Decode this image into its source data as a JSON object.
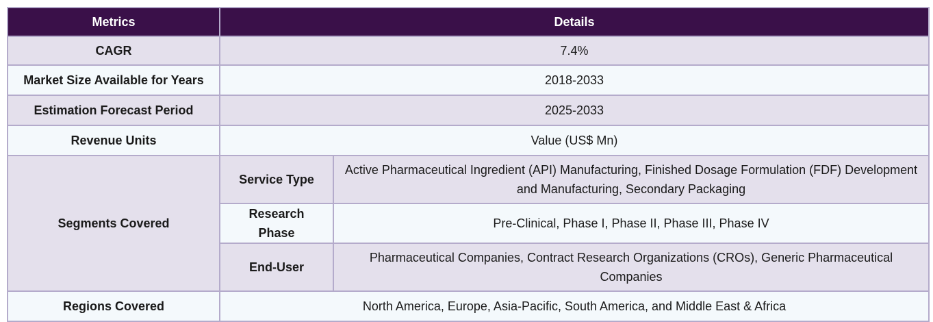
{
  "header": {
    "col1": "Metrics",
    "col2": "Details"
  },
  "rows": {
    "cagr": {
      "label": "CAGR",
      "value": "7.4%"
    },
    "market_size": {
      "label": "Market Size Available for Years",
      "value": "2018-2033"
    },
    "forecast": {
      "label": "Estimation Forecast Period",
      "value": "2025-2033"
    },
    "revenue": {
      "label": "Revenue Units",
      "value": "Value (US$ Mn)"
    },
    "segments": {
      "label": "Segments Covered",
      "service_type": {
        "label": "Service Type",
        "value": "Active Pharmaceutical Ingredient (API) Manufacturing, Finished Dosage Formulation (FDF) Development and Manufacturing, Secondary Packaging"
      },
      "research_phase": {
        "label": "Research Phase",
        "value": "Pre-Clinical, Phase I, Phase II, Phase III, Phase IV"
      },
      "end_user": {
        "label": "End-User",
        "value": "Pharmaceutical Companies, Contract Research Organizations (CROs), Generic Pharmaceutical Companies"
      }
    },
    "regions": {
      "label": "Regions Covered",
      "value": "North America, Europe, Asia-Pacific, South America, and Middle East & Africa"
    }
  }
}
